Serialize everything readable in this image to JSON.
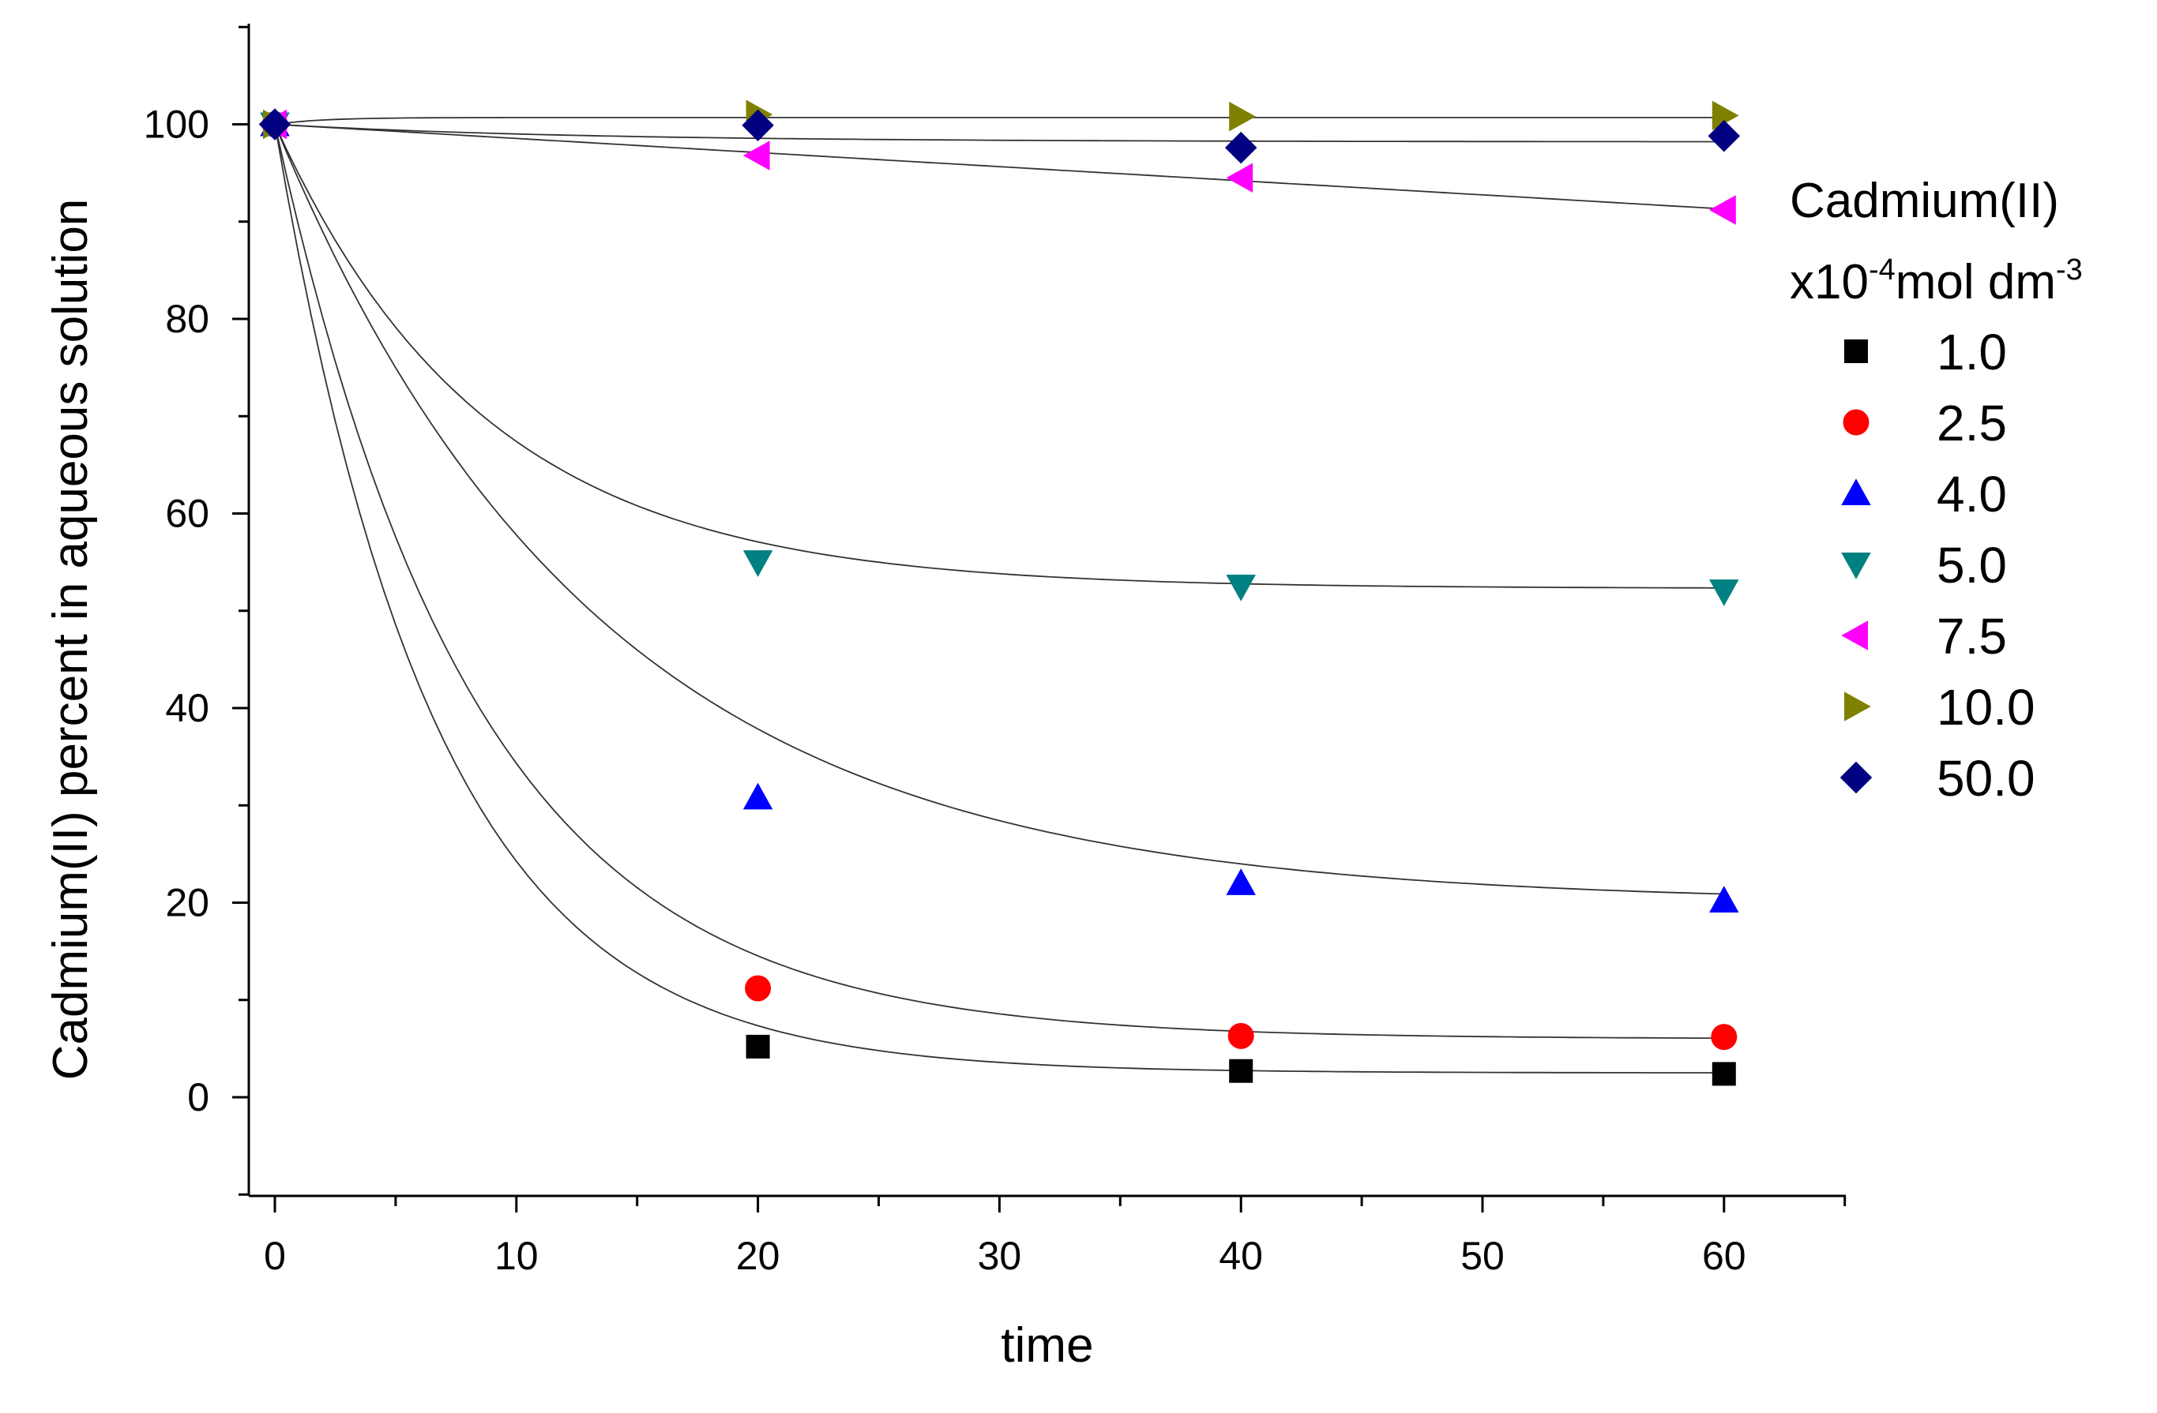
{
  "chart_data": {
    "type": "scatter",
    "title": "",
    "xlabel": "time",
    "ylabel": "Cadmium(II) percent in aqueous solution",
    "xlim": [
      -1.5,
      65
    ],
    "ylim": [
      -10,
      110
    ],
    "xticks": [
      0,
      10,
      20,
      30,
      40,
      50,
      60
    ],
    "yticks": [
      0,
      20,
      40,
      60,
      80,
      100
    ],
    "xtick_labels": [
      "0",
      "10",
      "20",
      "30",
      "40",
      "50",
      "60"
    ],
    "ytick_labels": [
      "0",
      "20",
      "40",
      "60",
      "80",
      "100"
    ],
    "grid": false,
    "legend": {
      "position": "right",
      "title_line1": "Cadmium(II)",
      "title_line2_prefix": "x10",
      "title_line2_exp1": "-4",
      "title_line2_mid": "mol dm",
      "title_line2_exp2": "-3"
    },
    "x": [
      0,
      20,
      40,
      60
    ],
    "series": [
      {
        "name": "1.0",
        "marker": "square",
        "color": "#000000",
        "values": [
          100,
          5.2,
          2.7,
          2.4
        ],
        "fit": {
          "a": 2.5,
          "b": 97.5,
          "k": 0.15
        }
      },
      {
        "name": "2.5",
        "marker": "circle",
        "color": "#ff0000",
        "values": [
          100,
          11.2,
          6.3,
          6.2
        ],
        "fit": {
          "a": 6.0,
          "b": 94.0,
          "k": 0.12
        }
      },
      {
        "name": "4.0",
        "marker": "triangle-up",
        "color": "#0000ff",
        "values": [
          100,
          30.8,
          22.0,
          20.2
        ],
        "fit": {
          "a": 20.0,
          "b": 80.0,
          "k": 0.075
        }
      },
      {
        "name": "5.0",
        "marker": "triangle-down",
        "color": "#008080",
        "values": [
          100,
          55.0,
          52.5,
          52.0
        ],
        "fit": {
          "a": 52.3,
          "b": 47.7,
          "k": 0.115
        }
      },
      {
        "name": "7.5",
        "marker": "triangle-left",
        "color": "#ff00ff",
        "values": [
          100,
          96.8,
          94.5,
          91.2
        ],
        "fit": {
          "linear": true,
          "a": 100.0,
          "slope": -0.145
        }
      },
      {
        "name": "10.0",
        "marker": "triangle-right",
        "color": "#808000",
        "values": [
          100,
          101.0,
          100.8,
          100.9
        ],
        "fit": {
          "a": 100.7,
          "b": -0.7,
          "k": 0.5
        }
      },
      {
        "name": "50.0",
        "marker": "diamond",
        "color": "#000080",
        "values": [
          100,
          99.9,
          97.6,
          98.8
        ],
        "fit": {
          "a": 98.2,
          "b": 1.8,
          "k": 0.08
        }
      }
    ]
  }
}
